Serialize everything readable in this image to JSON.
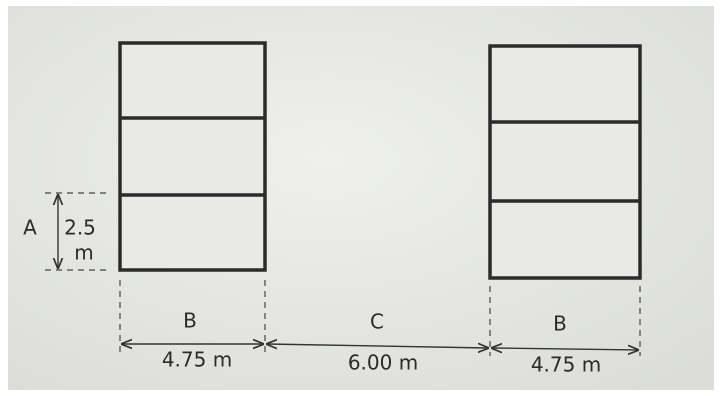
{
  "height_dimension": {
    "label": "A",
    "value": "2.5",
    "unit": "m"
  },
  "width_dimensions": [
    {
      "label": "B",
      "value": "4.75 m"
    },
    {
      "label": "C",
      "value": "6.00 m"
    },
    {
      "label": "B",
      "value": "4.75 m"
    }
  ]
}
